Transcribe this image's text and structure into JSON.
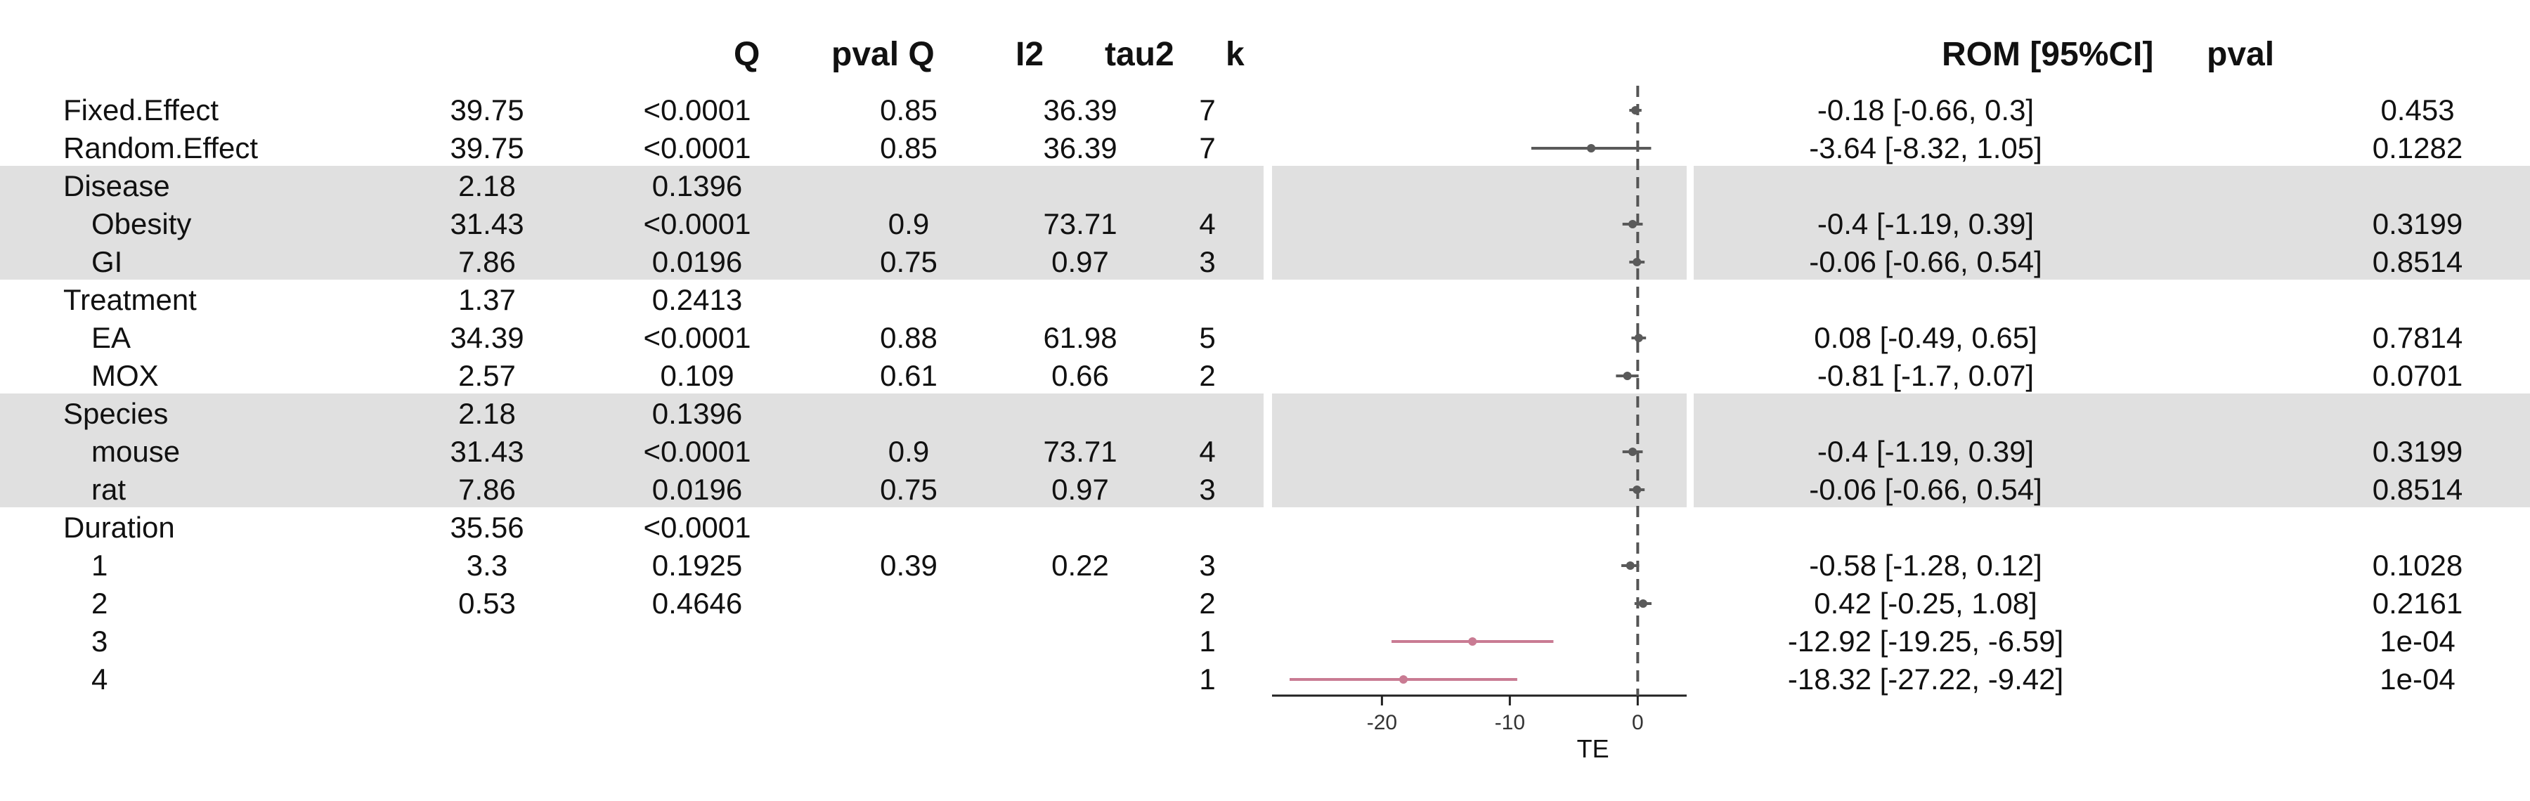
{
  "headers": {
    "q": "Q",
    "pval_q": "pval Q",
    "i2": "I2",
    "tau2": "tau2",
    "k": "k",
    "rom": "ROM [95%CI]",
    "pval": "pval"
  },
  "rows": [
    {
      "label": "Fixed.Effect",
      "indent": false,
      "shaded": false,
      "q": "39.75",
      "pval_q": "<0.0001",
      "i2": "0.85",
      "tau2": "36.39",
      "k": "7",
      "rom": "-0.18 [-0.66, 0.3]",
      "pval": "0.453"
    },
    {
      "label": "Random.Effect",
      "indent": false,
      "shaded": false,
      "q": "39.75",
      "pval_q": "<0.0001",
      "i2": "0.85",
      "tau2": "36.39",
      "k": "7",
      "rom": "-3.64 [-8.32, 1.05]",
      "pval": "0.1282"
    },
    {
      "label": "Disease",
      "indent": false,
      "shaded": true,
      "q": "2.18",
      "pval_q": "0.1396",
      "i2": "",
      "tau2": "",
      "k": "",
      "rom": "",
      "pval": ""
    },
    {
      "label": "Obesity",
      "indent": true,
      "shaded": true,
      "q": "31.43",
      "pval_q": "<0.0001",
      "i2": "0.9",
      "tau2": "73.71",
      "k": "4",
      "rom": "-0.4 [-1.19, 0.39]",
      "pval": "0.3199"
    },
    {
      "label": "GI",
      "indent": true,
      "shaded": true,
      "q": "7.86",
      "pval_q": "0.0196",
      "i2": "0.75",
      "tau2": "0.97",
      "k": "3",
      "rom": "-0.06 [-0.66, 0.54]",
      "pval": "0.8514"
    },
    {
      "label": "Treatment",
      "indent": false,
      "shaded": false,
      "q": "1.37",
      "pval_q": "0.2413",
      "i2": "",
      "tau2": "",
      "k": "",
      "rom": "",
      "pval": ""
    },
    {
      "label": "EA",
      "indent": true,
      "shaded": false,
      "q": "34.39",
      "pval_q": "<0.0001",
      "i2": "0.88",
      "tau2": "61.98",
      "k": "5",
      "rom": "0.08 [-0.49, 0.65]",
      "pval": "0.7814"
    },
    {
      "label": "MOX",
      "indent": true,
      "shaded": false,
      "q": "2.57",
      "pval_q": "0.109",
      "i2": "0.61",
      "tau2": "0.66",
      "k": "2",
      "rom": "-0.81 [-1.7, 0.07]",
      "pval": "0.0701"
    },
    {
      "label": "Species",
      "indent": false,
      "shaded": true,
      "q": "2.18",
      "pval_q": "0.1396",
      "i2": "",
      "tau2": "",
      "k": "",
      "rom": "",
      "pval": ""
    },
    {
      "label": "mouse",
      "indent": true,
      "shaded": true,
      "q": "31.43",
      "pval_q": "<0.0001",
      "i2": "0.9",
      "tau2": "73.71",
      "k": "4",
      "rom": "-0.4 [-1.19, 0.39]",
      "pval": "0.3199"
    },
    {
      "label": "rat",
      "indent": true,
      "shaded": true,
      "q": "7.86",
      "pval_q": "0.0196",
      "i2": "0.75",
      "tau2": "0.97",
      "k": "3",
      "rom": "-0.06 [-0.66, 0.54]",
      "pval": "0.8514"
    },
    {
      "label": "Duration",
      "indent": false,
      "shaded": false,
      "q": "35.56",
      "pval_q": "<0.0001",
      "i2": "",
      "tau2": "",
      "k": "",
      "rom": "",
      "pval": ""
    },
    {
      "label": "1",
      "indent": true,
      "shaded": false,
      "q": "3.3",
      "pval_q": "0.1925",
      "i2": "0.39",
      "tau2": "0.22",
      "k": "3",
      "rom": "-0.58 [-1.28, 0.12]",
      "pval": "0.1028"
    },
    {
      "label": "2",
      "indent": true,
      "shaded": false,
      "q": "0.53",
      "pval_q": "0.4646",
      "i2": "",
      "tau2": "",
      "k": "2",
      "rom": "0.42 [-0.25, 1.08]",
      "pval": "0.2161"
    },
    {
      "label": "3",
      "indent": true,
      "shaded": false,
      "q": "",
      "pval_q": "",
      "i2": "",
      "tau2": "",
      "k": "1",
      "rom": "-12.92 [-19.25, -6.59]",
      "pval": "1e-04"
    },
    {
      "label": "4",
      "indent": true,
      "shaded": false,
      "q": "",
      "pval_q": "",
      "i2": "",
      "tau2": "",
      "k": "1",
      "rom": "-18.32 [-27.22, -9.42]",
      "pval": "1e-04"
    }
  ],
  "colors": {
    "band": "#e0e0e0",
    "estimate": "#5a5a5a",
    "highlight": "#c97b93",
    "axis": "#222222",
    "refline": "#555555"
  },
  "chart_data": {
    "type": "forest",
    "xlabel": "TE",
    "xticks": [
      -20,
      -10,
      0
    ],
    "xlim": [
      -27.22,
      1.08
    ],
    "reference_line": 0,
    "estimates": [
      {
        "label": "Fixed.Effect",
        "est": -0.18,
        "lo": -0.66,
        "hi": 0.3,
        "highlight": false
      },
      {
        "label": "Random.Effect",
        "est": -3.64,
        "lo": -8.32,
        "hi": 1.05,
        "highlight": false
      },
      {
        "label": "Disease",
        "est": null,
        "lo": null,
        "hi": null,
        "highlight": false
      },
      {
        "label": "Obesity",
        "est": -0.4,
        "lo": -1.19,
        "hi": 0.39,
        "highlight": false
      },
      {
        "label": "GI",
        "est": -0.06,
        "lo": -0.66,
        "hi": 0.54,
        "highlight": false
      },
      {
        "label": "Treatment",
        "est": null,
        "lo": null,
        "hi": null,
        "highlight": false
      },
      {
        "label": "EA",
        "est": 0.08,
        "lo": -0.49,
        "hi": 0.65,
        "highlight": false
      },
      {
        "label": "MOX",
        "est": -0.81,
        "lo": -1.7,
        "hi": 0.07,
        "highlight": false
      },
      {
        "label": "Species",
        "est": null,
        "lo": null,
        "hi": null,
        "highlight": false
      },
      {
        "label": "mouse",
        "est": -0.4,
        "lo": -1.19,
        "hi": 0.39,
        "highlight": false
      },
      {
        "label": "rat",
        "est": -0.06,
        "lo": -0.66,
        "hi": 0.54,
        "highlight": false
      },
      {
        "label": "Duration",
        "est": null,
        "lo": null,
        "hi": null,
        "highlight": false
      },
      {
        "label": "1",
        "est": -0.58,
        "lo": -1.28,
        "hi": 0.12,
        "highlight": false
      },
      {
        "label": "2",
        "est": 0.42,
        "lo": -0.25,
        "hi": 1.08,
        "highlight": false
      },
      {
        "label": "3",
        "est": -12.92,
        "lo": -19.25,
        "hi": -6.59,
        "highlight": true
      },
      {
        "label": "4",
        "est": -18.32,
        "lo": -27.22,
        "hi": -9.42,
        "highlight": true
      }
    ]
  }
}
